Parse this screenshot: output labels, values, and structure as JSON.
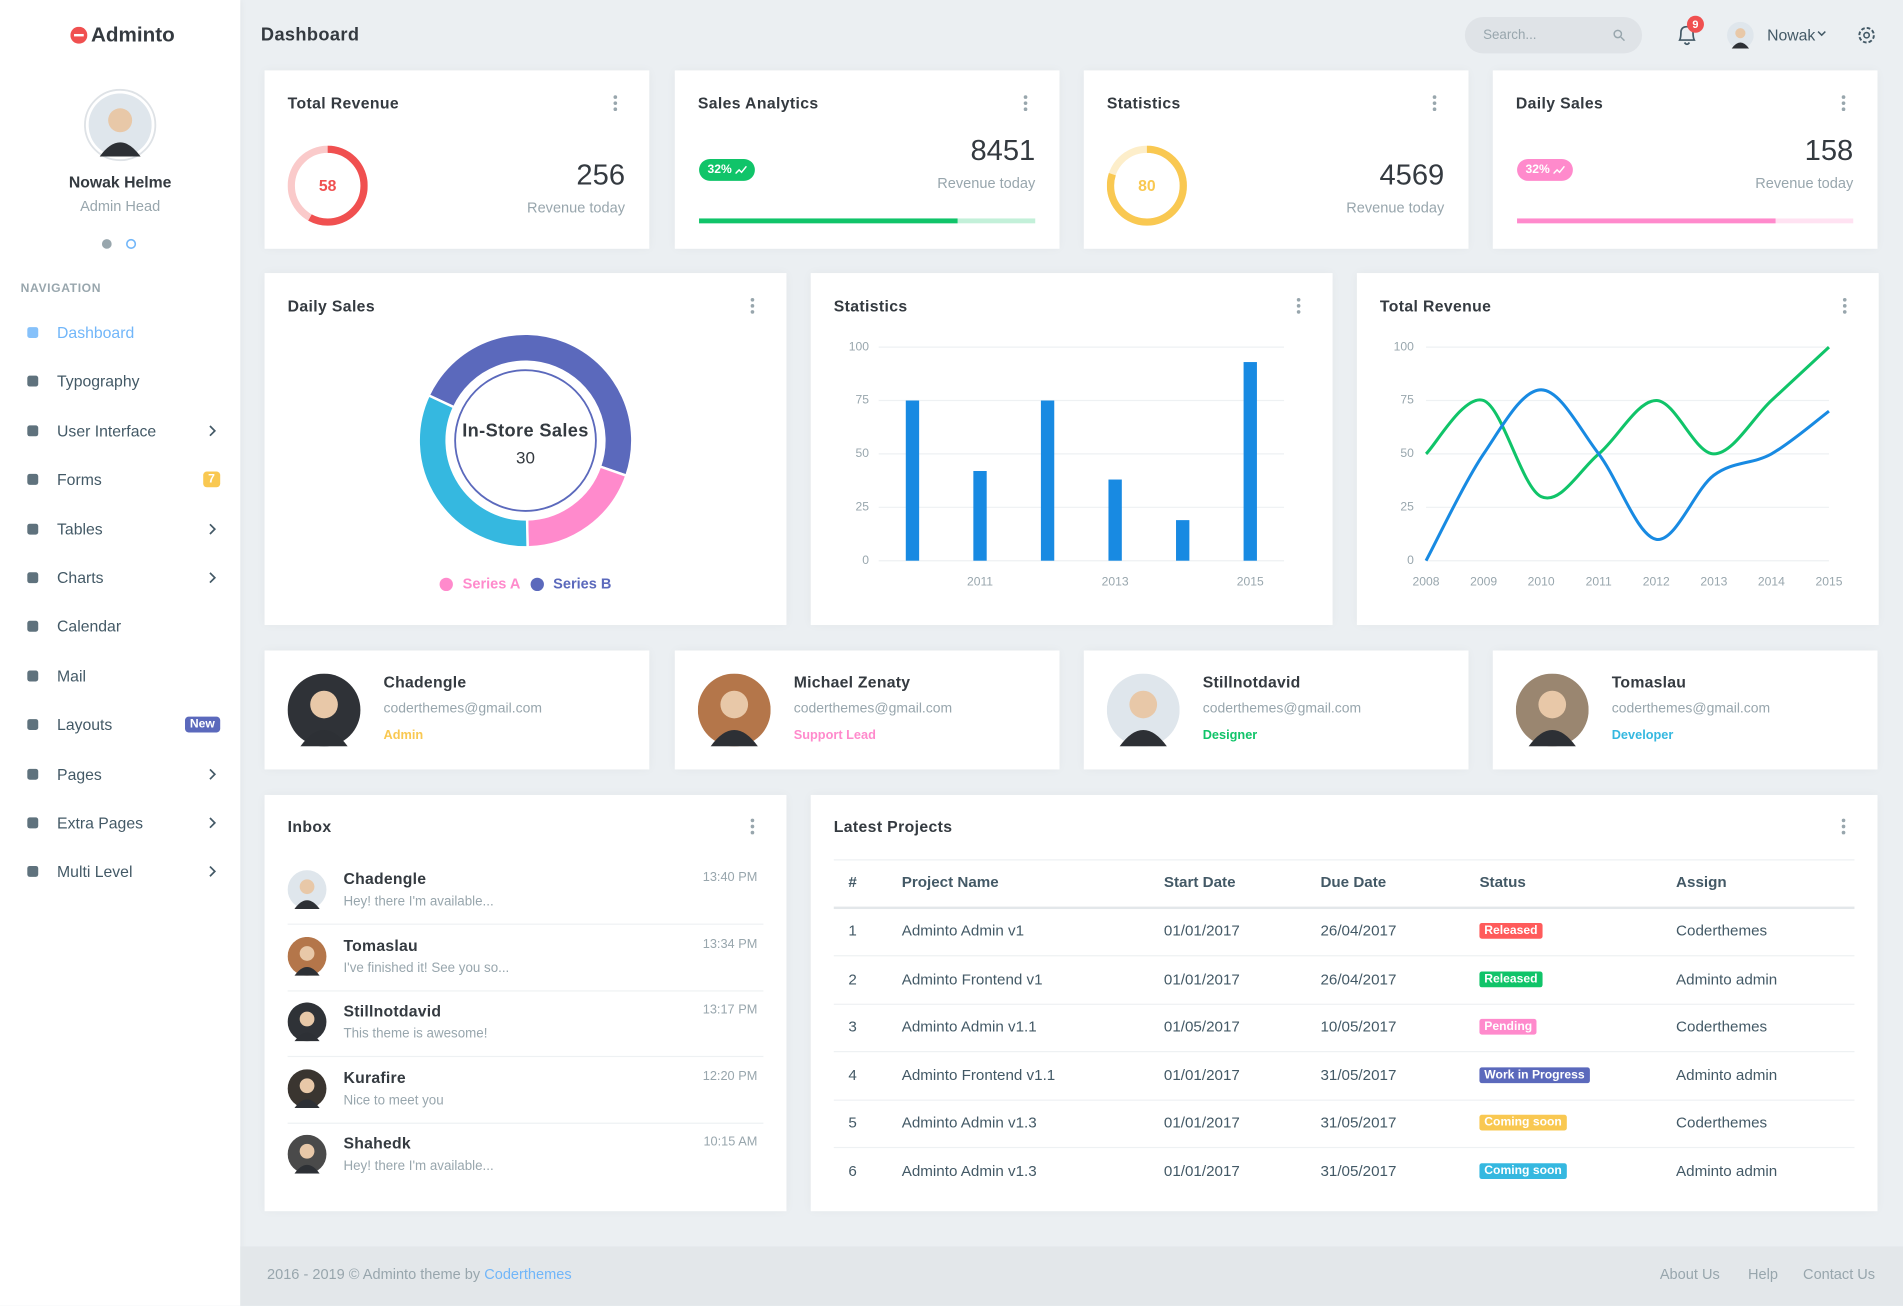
{
  "sidebar": {
    "brand": "Adminto",
    "user": {
      "name": "Nowak Helme",
      "role": "Admin Head"
    },
    "nav_title": "NAVIGATION",
    "active": 0,
    "nav": [
      {
        "label": "Dashboard"
      },
      {
        "label": "Typography"
      },
      {
        "label": "User Interface",
        "submenu": true
      },
      {
        "label": "Forms",
        "badge": "7",
        "badge_color": "#f9c851"
      },
      {
        "label": "Tables",
        "submenu": true
      },
      {
        "label": "Charts",
        "submenu": true
      },
      {
        "label": "Calendar"
      },
      {
        "label": "Mail"
      },
      {
        "label": "Layouts",
        "badge": "New",
        "badge_color": "#5b69bc"
      },
      {
        "label": "Pages",
        "submenu": true
      },
      {
        "label": "Extra Pages",
        "submenu": true
      },
      {
        "label": "Multi Level",
        "submenu": true
      }
    ]
  },
  "topbar": {
    "title": "Dashboard",
    "search_placeholder": "Search...",
    "notification_count": "9",
    "user": "Nowak"
  },
  "stats": [
    {
      "title": "Total Revenue",
      "type": "ring",
      "value": 58,
      "color": "#f05050",
      "total": 256,
      "caption": "Revenue today"
    },
    {
      "title": "Sales Analytics",
      "type": "progress",
      "badge": "32%",
      "progress": 77,
      "color": "#10c469",
      "total": 8451,
      "caption": "Revenue today"
    },
    {
      "title": "Statistics",
      "type": "ring",
      "value": 80,
      "color": "#f9c851",
      "total": 4569,
      "caption": "Revenue today"
    },
    {
      "title": "Daily Sales",
      "type": "progress",
      "badge": "32%",
      "progress": 77,
      "color": "#ff8acc",
      "total": 158,
      "caption": "Revenue today"
    }
  ],
  "charts": {
    "daily_sales": {
      "title": "Daily Sales",
      "type": "donut",
      "labels": [
        "In-Store Sales",
        null,
        null
      ],
      "values": [
        30,
        12,
        20
      ],
      "colors": [
        "#5b69bc",
        "#ff8acc",
        "#35b8e0"
      ],
      "legend": [
        {
          "name": "Series A",
          "color": "#ff8acc"
        },
        {
          "name": "Series B",
          "color": "#5b69bc"
        }
      ]
    },
    "statistics": {
      "title": "Statistics",
      "type": "bar",
      "categories": [
        null,
        "2011",
        null,
        "2013",
        null,
        "2015"
      ],
      "values": [
        75,
        42,
        75,
        38,
        19,
        93
      ],
      "color": "#188ae2",
      "ylim": [
        0,
        100
      ],
      "yticks": [
        0,
        25,
        50,
        75,
        100
      ],
      "grid": true
    },
    "total_revenue": {
      "title": "Total Revenue",
      "type": "line",
      "x": [
        2008,
        2009,
        2010,
        2011,
        2012,
        2013,
        2014,
        2015
      ],
      "xlim": [
        2008,
        2015
      ],
      "xticks": [
        2008,
        2009,
        2010,
        2011,
        2012,
        2013,
        2014,
        2015
      ],
      "ylim": [
        0,
        100
      ],
      "yticks": [
        0,
        25,
        50,
        75,
        100
      ],
      "grid": true,
      "series": [
        {
          "color": "#10c469",
          "values": [
            50,
            75,
            30,
            50,
            75,
            50,
            75,
            100
          ]
        },
        {
          "color": "#188ae2",
          "values": [
            0,
            50,
            80,
            50,
            10,
            40,
            50,
            70
          ]
        }
      ]
    }
  },
  "contacts": [
    {
      "name": "Chadengle",
      "email": "coderthemes@gmail.com",
      "role": "Admin",
      "role_color": "#f9c851"
    },
    {
      "name": "Michael Zenaty",
      "email": "coderthemes@gmail.com",
      "role": "Support Lead",
      "role_color": "#ff8acc"
    },
    {
      "name": "Stillnotdavid",
      "email": "coderthemes@gmail.com",
      "role": "Designer",
      "role_color": "#10c469"
    },
    {
      "name": "Tomaslau",
      "email": "coderthemes@gmail.com",
      "role": "Developer",
      "role_color": "#35b8e0"
    }
  ],
  "inbox": {
    "title": "Inbox",
    "messages": [
      {
        "name": "Chadengle",
        "text": "Hey! there I'm available...",
        "time": "13:40 PM"
      },
      {
        "name": "Tomaslau",
        "text": "I've finished it! See you so...",
        "time": "13:34 PM"
      },
      {
        "name": "Stillnotdavid",
        "text": "This theme is awesome!",
        "time": "13:17 PM"
      },
      {
        "name": "Kurafire",
        "text": "Nice to meet you",
        "time": "12:20 PM"
      },
      {
        "name": "Shahedk",
        "text": "Hey! there I'm available...",
        "time": "10:15 AM"
      }
    ]
  },
  "projects": {
    "title": "Latest Projects",
    "columns": [
      "#",
      "Project Name",
      "Start Date",
      "Due Date",
      "Status",
      "Assign"
    ],
    "rows": [
      {
        "id": 1,
        "name": "Adminto Admin v1",
        "start": "01/01/2017",
        "due": "26/04/2017",
        "status": "Released",
        "status_color": "#ff5b5b",
        "assign": "Coderthemes"
      },
      {
        "id": 2,
        "name": "Adminto Frontend v1",
        "start": "01/01/2017",
        "due": "26/04/2017",
        "status": "Released",
        "status_color": "#10c469",
        "assign": "Adminto admin"
      },
      {
        "id": 3,
        "name": "Adminto Admin v1.1",
        "start": "01/05/2017",
        "due": "10/05/2017",
        "status": "Pending",
        "status_color": "#ff8acc",
        "assign": "Coderthemes"
      },
      {
        "id": 4,
        "name": "Adminto Frontend v1.1",
        "start": "01/01/2017",
        "due": "31/05/2017",
        "status": "Work in Progress",
        "status_color": "#5b69bc",
        "assign": "Adminto admin"
      },
      {
        "id": 5,
        "name": "Adminto Admin v1.3",
        "start": "01/01/2017",
        "due": "31/05/2017",
        "status": "Coming soon",
        "status_color": "#f9c851",
        "assign": "Coderthemes"
      },
      {
        "id": 6,
        "name": "Adminto Admin v1.3",
        "start": "01/01/2017",
        "due": "31/05/2017",
        "status": "Coming soon",
        "status_color": "#35b8e0",
        "assign": "Adminto admin"
      }
    ]
  },
  "footer": {
    "copyright": "2016 - 2019 © Adminto theme by",
    "link": "Coderthemes",
    "links": [
      "About Us",
      "Help",
      "Contact Us"
    ]
  }
}
